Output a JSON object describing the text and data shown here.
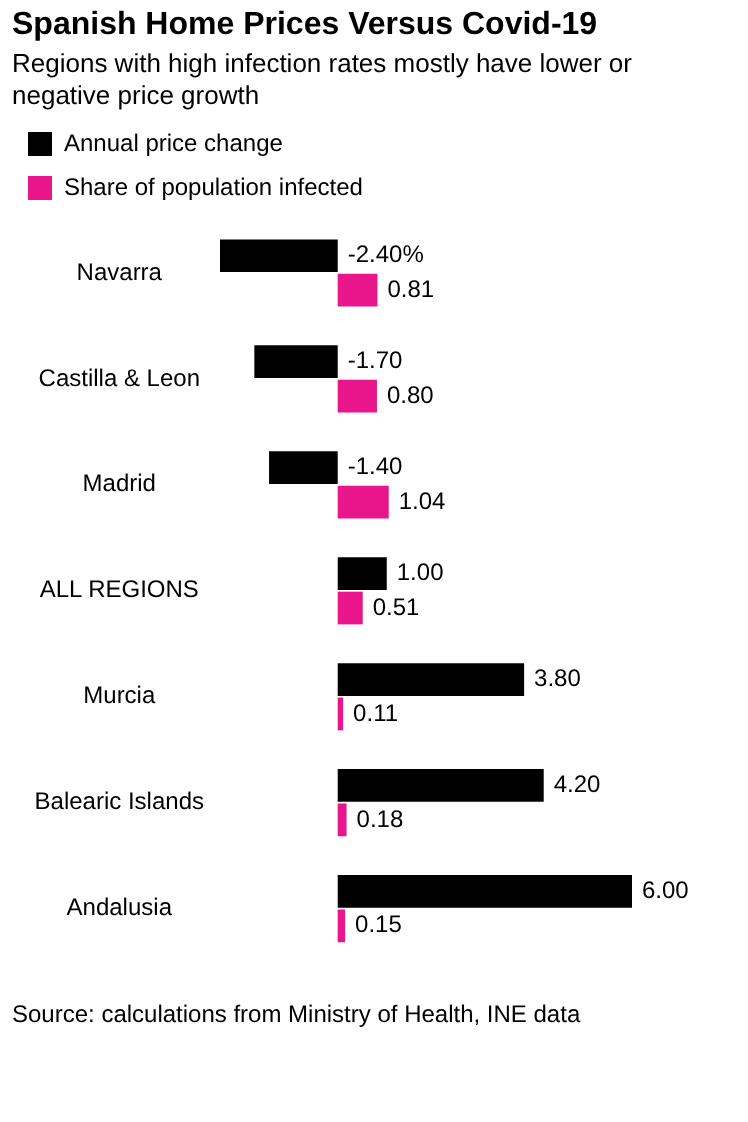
{
  "chart_data": {
    "type": "bar",
    "orientation": "horizontal",
    "title": "Spanish Home Prices Versus Covid-19",
    "subtitle": "Regions with high infection rates mostly have lower or negative price growth",
    "categories": [
      "Navarra",
      "Castilla & Leon",
      "Madrid",
      "ALL REGIONS",
      "Murcia",
      "Balearic Islands",
      "Andalusia"
    ],
    "series": [
      {
        "name": "Annual price change",
        "color": "#000000",
        "values": [
          -2.4,
          -1.7,
          -1.4,
          1.0,
          3.8,
          4.2,
          6.0
        ],
        "value_labels": [
          "-2.40%",
          "-1.70",
          "-1.40",
          "1.00",
          "3.80",
          "4.20",
          "6.00"
        ]
      },
      {
        "name": "Share of population infected",
        "color": "#e8168a",
        "values": [
          0.81,
          0.8,
          1.04,
          0.51,
          0.11,
          0.18,
          0.15
        ],
        "value_labels": [
          "0.81",
          "0.80",
          "1.04",
          "0.51",
          "0.11",
          "0.18",
          "0.15"
        ]
      }
    ],
    "legend": "top left",
    "grid": false,
    "tick_labels": "y",
    "annotations": [
      "Source: calculations from Ministry of Health, INE data"
    ]
  }
}
